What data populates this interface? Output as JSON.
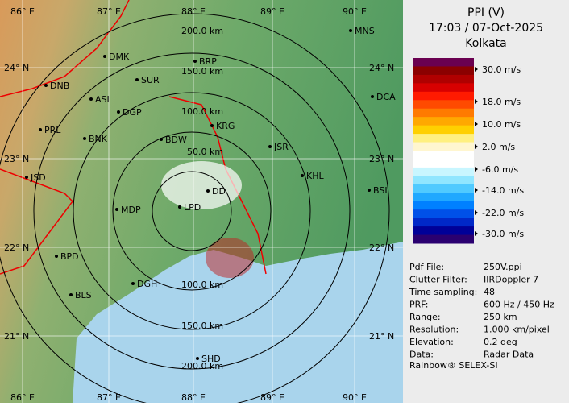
{
  "panel": {
    "title": "PPI (V)",
    "time": "17:03 / 07-Oct-2025",
    "site": "Kolkata",
    "legend": [
      "30.0 m/s",
      "18.0 m/s",
      "10.0 m/s",
      "2.0 m/s",
      "-6.0 m/s",
      "-14.0 m/s",
      "-22.0 m/s",
      "-30.0 m/s"
    ],
    "info": [
      [
        "Pdf File:",
        "250V.ppi"
      ],
      [
        "Clutter Filter:",
        "IIRDoppler 7"
      ],
      [
        "Time sampling:",
        "48"
      ],
      [
        "PRF:",
        "600 Hz / 450 Hz"
      ],
      [
        "Range:",
        "250 km"
      ],
      [
        "Resolution:",
        "1.000 km/pixel"
      ],
      [
        "Elevation:",
        "0.2 deg"
      ],
      [
        "Data:",
        "Radar Data"
      ]
    ],
    "footer": "Rainbow® SELEX-SI"
  },
  "map": {
    "longitudes": [
      "86° E",
      "87° E",
      "88° E",
      "89° E",
      "90° E"
    ],
    "latitudes": [
      "24° N",
      "23° N",
      "22° N",
      "21° N"
    ],
    "ranges": [
      "50.0 km",
      "100.0 km",
      "150.0 km",
      "200.0 km"
    ],
    "cities": [
      "MNS",
      "DMK",
      "BRP",
      "DNB",
      "SUR",
      "ASL",
      "DGP",
      "DCA",
      "PRL",
      "KRG",
      "BNK",
      "BDW",
      "JSR",
      "KHL",
      "JSD",
      "DD",
      "BSL",
      "MDP",
      "LPD",
      "BPD",
      "BLS",
      "DGH",
      "SHD"
    ]
  }
}
